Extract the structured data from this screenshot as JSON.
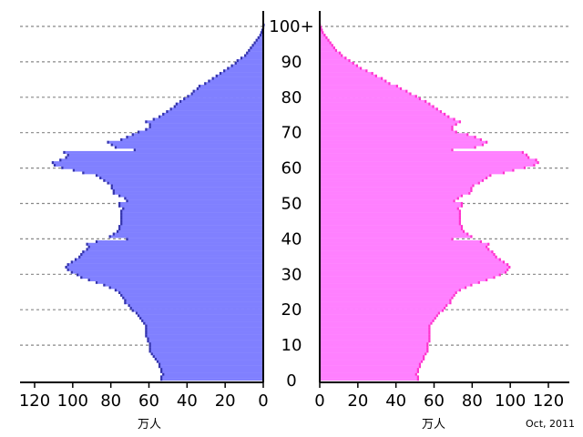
{
  "chart_data": {
    "type": "bar",
    "orientation": "horizontal-pyramid",
    "age_ticks": [
      "0",
      "10",
      "20",
      "30",
      "40",
      "50",
      "60",
      "70",
      "80",
      "90",
      "100+"
    ],
    "x_ticks_left": [
      "120",
      "100",
      "80",
      "60",
      "40",
      "20",
      "0"
    ],
    "x_ticks_right": [
      "0",
      "20",
      "40",
      "60",
      "80",
      "100",
      "120"
    ],
    "x_unit_left": "万人",
    "x_unit_right": "万人",
    "date_label": "Oct, 2011",
    "xlim": [
      0,
      120
    ],
    "age_range": [
      0,
      100
    ],
    "grid": "dashed horizontal at each 10 years",
    "series": [
      {
        "side": "left",
        "color": "#8080ff",
        "edge_color": "#3333aa",
        "values": [
          54,
          54,
          53,
          54,
          54,
          55,
          55,
          56,
          57,
          58,
          59,
          60,
          60,
          60,
          60,
          61,
          61,
          62,
          62,
          62,
          62,
          62,
          63,
          64,
          65,
          66,
          67,
          69,
          70,
          71,
          73,
          73,
          74,
          75,
          76,
          78,
          81,
          84,
          88,
          92,
          96,
          98,
          101,
          103,
          104,
          103,
          101,
          99,
          97,
          96,
          95,
          93,
          92,
          93,
          88,
          72,
          81,
          79,
          77,
          76,
          76,
          75,
          75,
          75,
          75,
          75,
          75,
          74,
          76,
          76,
          72,
          73,
          76,
          79,
          79,
          80,
          80,
          82,
          84,
          86,
          88,
          95,
          100,
          106,
          110,
          111,
          107,
          104,
          103,
          105,
          68,
          78,
          80,
          82,
          75,
          72,
          69,
          66,
          62,
          60,
          60,
          62,
          58,
          55,
          53,
          51,
          49,
          47,
          46,
          44,
          42,
          40,
          38,
          37,
          35,
          34,
          31,
          29,
          27,
          25,
          23,
          21,
          19,
          17,
          15,
          14,
          12,
          10,
          9,
          8,
          7,
          6,
          5,
          4,
          3,
          2,
          1.5,
          1,
          0.5,
          0.3
        ],
        "ages_start": 0
      },
      {
        "side": "right",
        "color": "#ff80ff",
        "edge_color": "#ff33cc",
        "values": [
          52,
          52,
          51,
          52,
          52,
          53,
          53,
          54,
          55,
          55,
          56,
          57,
          57,
          57,
          57,
          58,
          58,
          58,
          58,
          58,
          58,
          58,
          59,
          60,
          61,
          62,
          63,
          65,
          66,
          67,
          69,
          69,
          70,
          71,
          72,
          74,
          77,
          80,
          84,
          88,
          92,
          95,
          98,
          99,
          100,
          99,
          97,
          95,
          93,
          92,
          91,
          89,
          88,
          89,
          85,
          70,
          80,
          78,
          76,
          75,
          75,
          74,
          74,
          74,
          74,
          74,
          74,
          73,
          75,
          75,
          71,
          73,
          75,
          79,
          80,
          80,
          81,
          84,
          86,
          88,
          90,
          97,
          102,
          108,
          113,
          115,
          114,
          110,
          109,
          107,
          70,
          82,
          86,
          88,
          85,
          82,
          78,
          72,
          70,
          70,
          72,
          74,
          71,
          68,
          66,
          64,
          62,
          60,
          58,
          56,
          53,
          51,
          48,
          46,
          43,
          41,
          37,
          35,
          33,
          30,
          28,
          25,
          22,
          20,
          18,
          16,
          14,
          12,
          11,
          9,
          8,
          7,
          6,
          5,
          4,
          3,
          2,
          1.5,
          1,
          0.5
        ]
      }
    ]
  }
}
